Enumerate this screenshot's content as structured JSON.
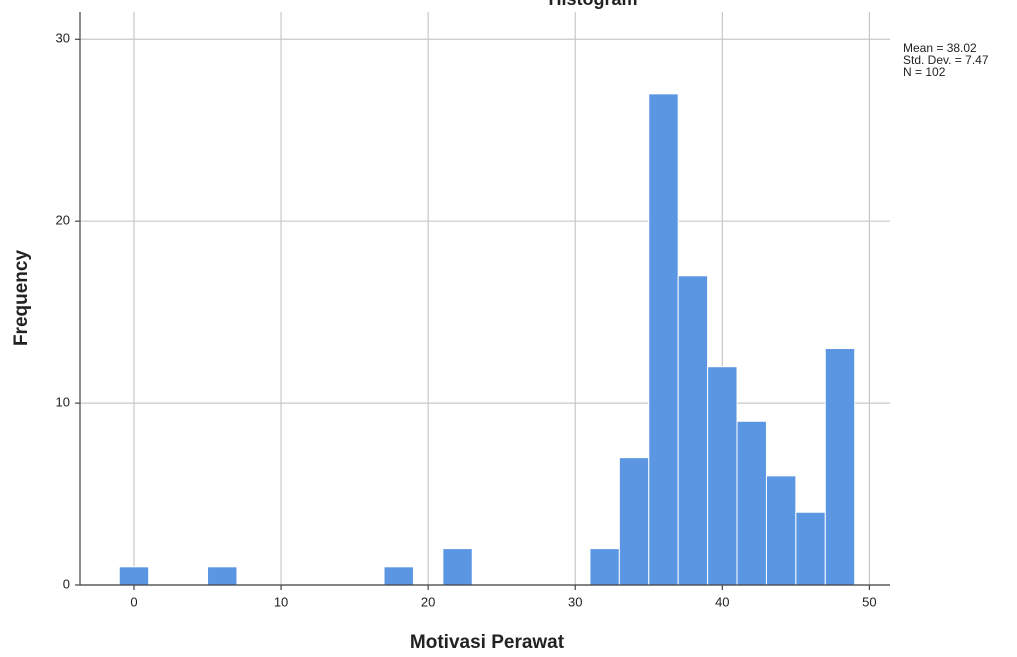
{
  "chart_data": {
    "type": "histogram",
    "title": "Histogram",
    "x_label": "Motivasi Perawat",
    "y_label": "Frequency",
    "bins": [
      -1,
      1,
      3,
      5,
      7,
      9,
      11,
      13,
      15,
      17,
      19,
      21,
      23,
      25,
      27,
      29,
      31,
      33,
      35,
      37,
      39,
      41,
      43,
      45,
      47,
      49
    ],
    "values": [
      1,
      0,
      0,
      1,
      0,
      0,
      0,
      0,
      0,
      1,
      0,
      2,
      0,
      0,
      0,
      0,
      2,
      7,
      27,
      17,
      12,
      9,
      6,
      4,
      13
    ],
    "color": "#5b96e3",
    "xlim": [
      -3.67,
      51.4
    ],
    "xticks": [
      0,
      10,
      20,
      30,
      40,
      50
    ],
    "ylim": [
      0,
      31.5
    ],
    "yticks": [
      0,
      10,
      20,
      30
    ],
    "grid": true,
    "stats": [
      "Mean = 38.02",
      "Std. Dev. = 7.47",
      "N = 102"
    ]
  }
}
